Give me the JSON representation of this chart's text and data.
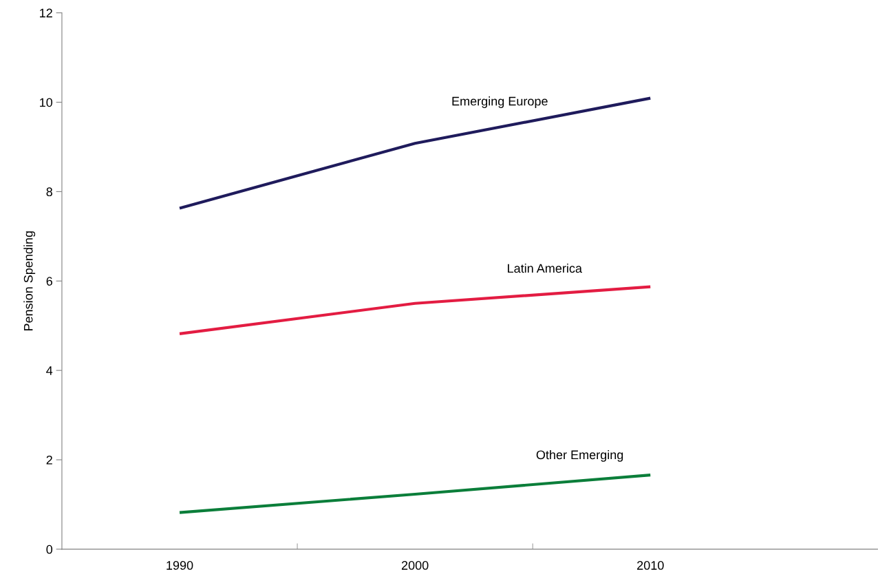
{
  "chart_data": {
    "type": "line",
    "ylabel": "Pension Spending",
    "categories": [
      "1990",
      "2000",
      "2010"
    ],
    "series": [
      {
        "name": "Emerging Europe",
        "color": "#1f1b5c",
        "values": [
          7.63,
          9.08,
          10.09
        ]
      },
      {
        "name": "Latin America",
        "color": "#e31c42",
        "values": [
          4.82,
          5.5,
          5.87
        ]
      },
      {
        "name": "Other Emerging",
        "color": "#0b7e3a",
        "values": [
          0.82,
          1.23,
          1.66
        ]
      }
    ],
    "ylim": [
      0,
      12
    ],
    "yticks": [
      0,
      2,
      4,
      6,
      8,
      10,
      12
    ],
    "grid": false,
    "legend": false,
    "marker": "none",
    "line_style": "solid"
  }
}
